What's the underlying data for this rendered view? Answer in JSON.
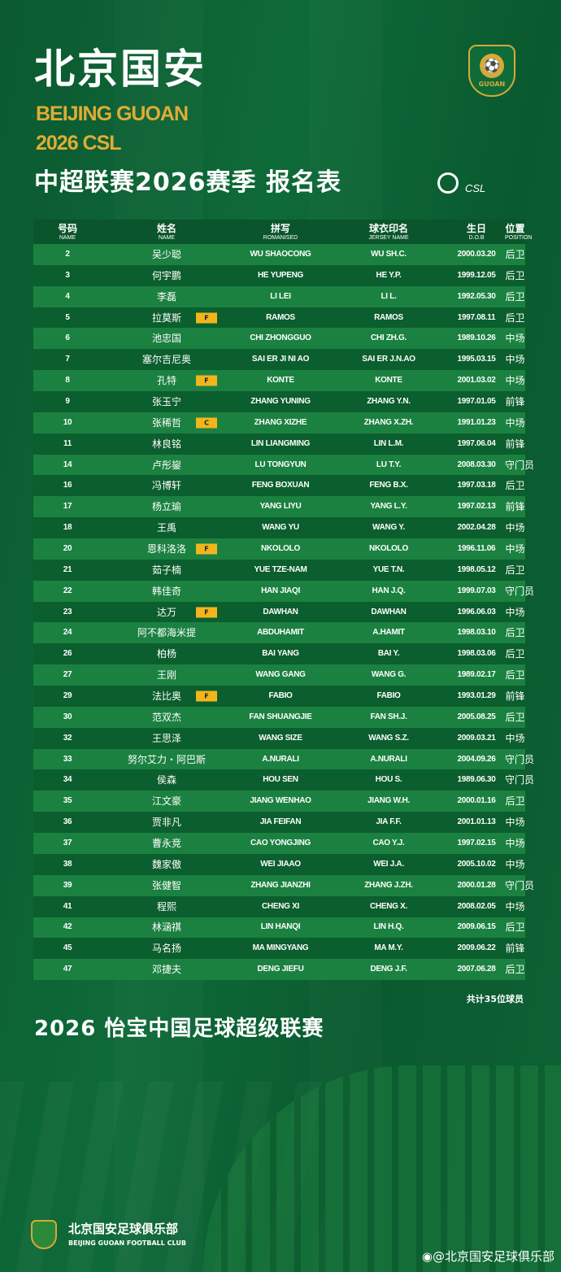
{
  "header": {
    "title_cn": "北京国安",
    "title_en": "BEIJING GUOAN",
    "season": "2026 CSL",
    "subtitle": "中超联赛2026赛季 报名表",
    "crest_text": "GUOAN",
    "csl_logo_text": "CSL"
  },
  "table": {
    "columns": [
      {
        "cn": "号码",
        "en": "NAME"
      },
      {
        "cn": "姓名",
        "en": "NAME"
      },
      {
        "cn": "拼写",
        "en": "ROMANISED"
      },
      {
        "cn": "球衣印名",
        "en": "JERSEY NAME"
      },
      {
        "cn": "生日",
        "en": "D.O.B"
      },
      {
        "cn": "位置",
        "en": "POSITION"
      }
    ],
    "rows": [
      [
        "2",
        "吴少聪",
        "WU SHAOCONG",
        "WU SH.C.",
        "2000.03.20",
        "后卫",
        ""
      ],
      [
        "3",
        "何宇鹏",
        "HE YUPENG",
        "HE Y.P.",
        "1999.12.05",
        "后卫",
        ""
      ],
      [
        "4",
        "李磊",
        "LI LEI",
        "LI L.",
        "1992.05.30",
        "后卫",
        ""
      ],
      [
        "5",
        "拉莫斯",
        "RAMOS",
        "RAMOS",
        "1997.08.11",
        "后卫",
        "F"
      ],
      [
        "6",
        "池忠国",
        "CHI ZHONGGUO",
        "CHI ZH.G.",
        "1989.10.26",
        "中场",
        ""
      ],
      [
        "7",
        "塞尔吉尼奥",
        "SAI ER JI NI AO",
        "SAI ER J.N.AO",
        "1995.03.15",
        "中场",
        ""
      ],
      [
        "8",
        "孔特",
        "KONTE",
        "KONTE",
        "2001.03.02",
        "中场",
        "F"
      ],
      [
        "9",
        "张玉宁",
        "ZHANG YUNING",
        "ZHANG Y.N.",
        "1997.01.05",
        "前锋",
        ""
      ],
      [
        "10",
        "张稀哲",
        "ZHANG XIZHE",
        "ZHANG X.ZH.",
        "1991.01.23",
        "中场",
        "C"
      ],
      [
        "11",
        "林良铭",
        "LIN LIANGMING",
        "LIN L.M.",
        "1997.06.04",
        "前锋",
        ""
      ],
      [
        "14",
        "卢彤鋆",
        "LU TONGYUN",
        "LU T.Y.",
        "2008.03.30",
        "守门员",
        ""
      ],
      [
        "16",
        "冯博轩",
        "FENG BOXUAN",
        "FENG B.X.",
        "1997.03.18",
        "后卫",
        ""
      ],
      [
        "17",
        "杨立瑜",
        "YANG LIYU",
        "YANG L.Y.",
        "1997.02.13",
        "前锋",
        ""
      ],
      [
        "18",
        "王禹",
        "WANG YU",
        "WANG Y.",
        "2002.04.28",
        "中场",
        ""
      ],
      [
        "20",
        "恩科洛洛",
        "NKOLOLO",
        "NKOLOLO",
        "1996.11.06",
        "中场",
        "F"
      ],
      [
        "21",
        "茹子楠",
        "YUE TZE-NAM",
        "YUE T.N.",
        "1998.05.12",
        "后卫",
        ""
      ],
      [
        "22",
        "韩佳奇",
        "HAN JIAQI",
        "HAN J.Q.",
        "1999.07.03",
        "守门员",
        ""
      ],
      [
        "23",
        "达万",
        "DAWHAN",
        "DAWHAN",
        "1996.06.03",
        "中场",
        "F"
      ],
      [
        "24",
        "阿不都海米提",
        "ABDUHAMIT",
        "A.HAMIT",
        "1998.03.10",
        "后卫",
        ""
      ],
      [
        "26",
        "柏杨",
        "BAI YANG",
        "BAI Y.",
        "1998.03.06",
        "后卫",
        ""
      ],
      [
        "27",
        "王刚",
        "WANG GANG",
        "WANG G.",
        "1989.02.17",
        "后卫",
        ""
      ],
      [
        "29",
        "法比奥",
        "FABIO",
        "FABIO",
        "1993.01.29",
        "前锋",
        "F"
      ],
      [
        "30",
        "范双杰",
        "FAN SHUANGJIE",
        "FAN SH.J.",
        "2005.08.25",
        "后卫",
        ""
      ],
      [
        "32",
        "王思泽",
        "WANG SIZE",
        "WANG S.Z.",
        "2009.03.21",
        "中场",
        ""
      ],
      [
        "33",
        "努尔艾力・阿巴斯",
        "A.NURALI",
        "A.NURALI",
        "2004.09.26",
        "守门员",
        ""
      ],
      [
        "34",
        "侯森",
        "HOU SEN",
        "HOU S.",
        "1989.06.30",
        "守门员",
        ""
      ],
      [
        "35",
        "江文豪",
        "JIANG WENHAO",
        "JIANG W.H.",
        "2000.01.16",
        "后卫",
        ""
      ],
      [
        "36",
        "贾非凡",
        "JIA FEIFAN",
        "JIA F.F.",
        "2001.01.13",
        "中场",
        ""
      ],
      [
        "37",
        "曹永竞",
        "CAO YONGJING",
        "CAO Y.J.",
        "1997.02.15",
        "中场",
        ""
      ],
      [
        "38",
        "魏家傲",
        "WEI JIAAO",
        "WEI J.A.",
        "2005.10.02",
        "中场",
        ""
      ],
      [
        "39",
        "张健智",
        "ZHANG JIANZHI",
        "ZHANG J.ZH.",
        "2000.01.28",
        "守门员",
        ""
      ],
      [
        "41",
        "程熙",
        "CHENG XI",
        "CHENG X.",
        "2008.02.05",
        "中场",
        ""
      ],
      [
        "42",
        "林涵祺",
        "LIN HANQI",
        "LIN H.Q.",
        "2009.06.15",
        "后卫",
        ""
      ],
      [
        "45",
        "马名扬",
        "MA MINGYANG",
        "MA M.Y.",
        "2009.06.22",
        "前锋",
        ""
      ],
      [
        "47",
        "邓捷夫",
        "DENG JIEFU",
        "DENG J.F.",
        "2007.06.28",
        "后卫",
        ""
      ]
    ]
  },
  "footer": {
    "count": "共计35位球员",
    "league": "2026 怡宝中国足球超级联赛",
    "club_cn": "北京国安足球俱乐部",
    "club_en": "BEIJING GUOAN FOOTBALL CLUB",
    "weibo": "@北京国安足球俱乐部"
  },
  "colors": {
    "background": "#0b5a30",
    "row_light": "#1b8140",
    "row_dark": "#0b5e2d",
    "gold": "#e0ac35",
    "badge": "#f2b51c"
  }
}
